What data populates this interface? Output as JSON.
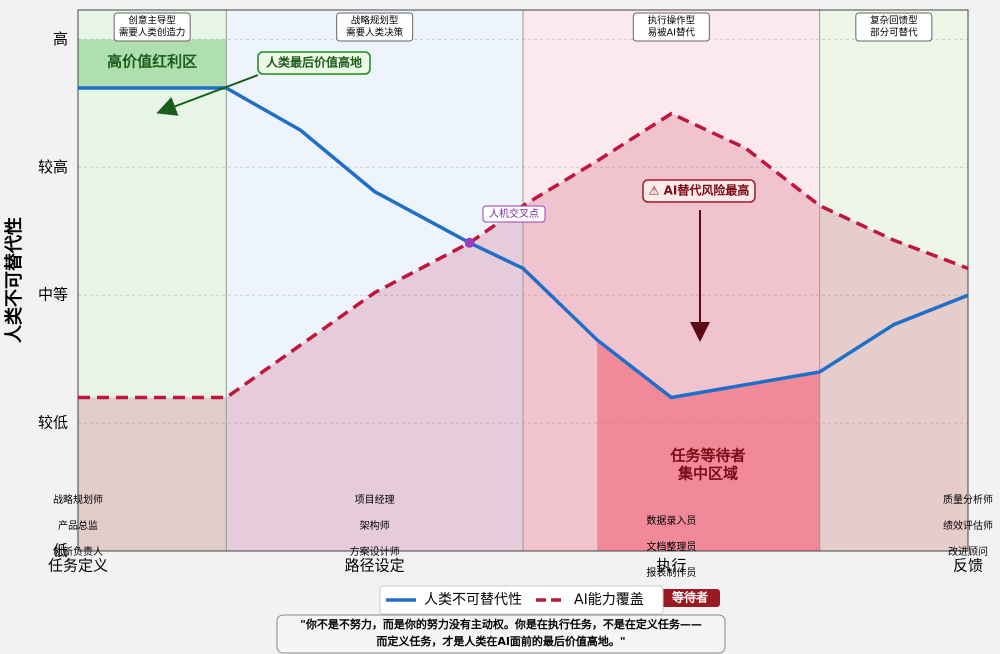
{
  "chart_data": {
    "type": "line",
    "ylabel": "人类不可替代性",
    "x": [
      0,
      0.5,
      0.75,
      1,
      1.32,
      1.5,
      1.75,
      2,
      2.25,
      2.5,
      2.75,
      3
    ],
    "xlim": [
      0,
      3
    ],
    "xticks": [
      {
        "value": 0,
        "label": "任务定义"
      },
      {
        "value": 1,
        "label": "路径设定"
      },
      {
        "value": 2,
        "label": "执行"
      },
      {
        "value": 3,
        "label": "反馈"
      }
    ],
    "ylim": [
      1,
      5.23
    ],
    "yticks": [
      {
        "value": 1,
        "label": "低"
      },
      {
        "value": 2,
        "label": "较低"
      },
      {
        "value": 3,
        "label": "中等"
      },
      {
        "value": 4,
        "label": "较高"
      },
      {
        "value": 5,
        "label": "高"
      }
    ],
    "grid": true,
    "series": [
      {
        "name": "人类不可替代性",
        "color": "#1f6fc8",
        "style": "solid",
        "values": [
          4.62,
          4.62,
          4.29,
          3.81,
          3.41,
          3.21,
          2.65,
          2.2,
          2.3,
          2.4,
          2.77,
          3.0
        ]
      },
      {
        "name": "AI能力覆盖",
        "color": "#c0163c",
        "style": "dashed",
        "values": [
          2.2,
          2.2,
          2.61,
          3.02,
          3.41,
          3.7,
          4.05,
          4.42,
          4.15,
          3.7,
          3.43,
          3.21
        ]
      }
    ],
    "zones": [
      {
        "label": [
          "创意主导型",
          "需要人类创造力"
        ],
        "color": "#e6f5e6"
      },
      {
        "label": [
          "战略规划型",
          "需要人类决策"
        ],
        "color": "#eef4fc"
      },
      {
        "label": [
          "执行操作型",
          "易被AI替代"
        ],
        "color": "#fbe9ee"
      },
      {
        "label": [
          "复杂回馈型",
          "部分可替代"
        ],
        "color": "#eef6e8"
      }
    ],
    "roles": [
      [
        "战略规划师",
        "产品总监",
        "创新负责人"
      ],
      [
        "项目经理",
        "架构师",
        "方案设计师"
      ],
      [
        "数据录入员",
        "文档整理员",
        "报表制作员"
      ],
      [
        "质量分析师",
        "绩效评估师",
        "改进顾问"
      ]
    ],
    "annotations": {
      "high_zone": "高价值红利区",
      "last_high": "人类最后价值高地",
      "crossing": "人机交叉点",
      "risk": "⚠ AI替代风险最高",
      "waiting": [
        "任务等待者",
        "集中区域"
      ],
      "waiting_tag": "等待者"
    },
    "quote": [
      "\"你不是不努力，而是你的努力没有主动权。你是在执行任务，不是在定义任务——",
      "而定义任务，才是人类在AI面前的最后价值高地。\""
    ]
  }
}
